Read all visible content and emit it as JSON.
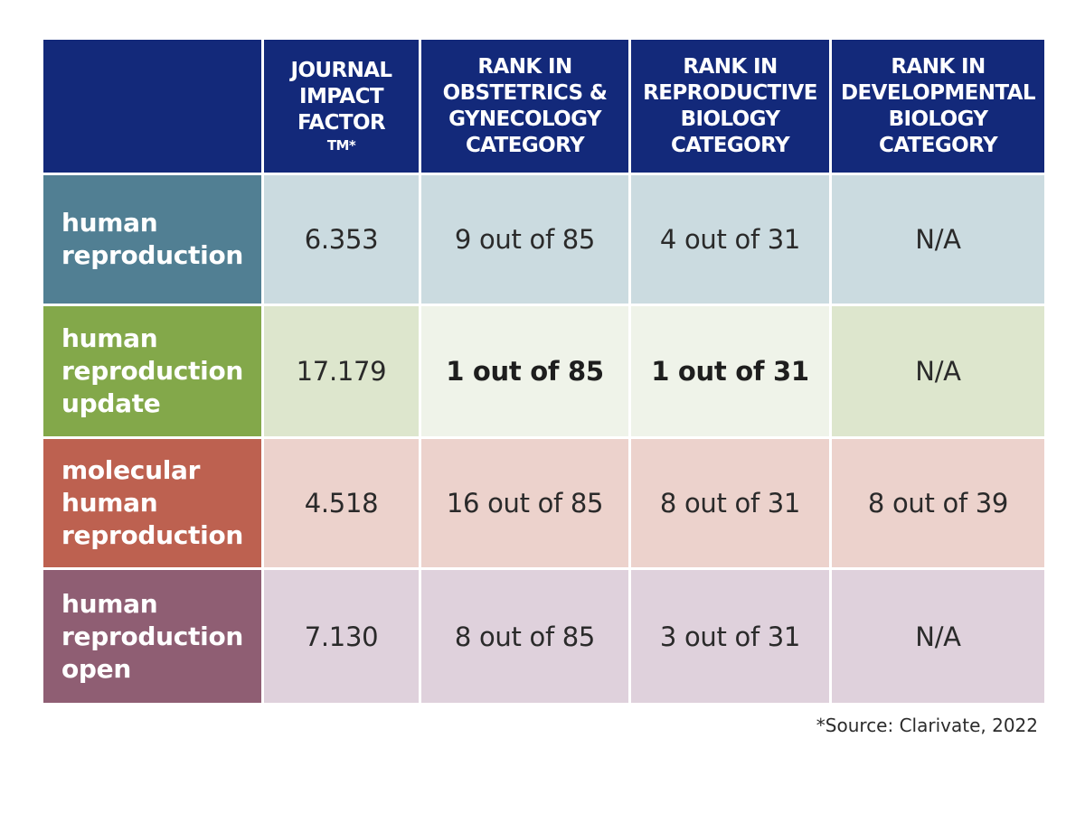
{
  "chart_data": {
    "type": "table",
    "columns": [
      "",
      "JOURNAL\nIMPACT\nFACTOR",
      "RANK IN\nOBSTETRICS &\nGYNECOLOGY\nCATEGORY",
      "RANK IN\nREPRODUCTIVE\nBIOLOGY\nCATEGORY",
      "RANK IN\nDEVELOPMENTAL\nBIOLOGY\nCATEGORY"
    ],
    "impact_factor_suffix": "TM*",
    "rows": [
      {
        "label": "human\nreproduction",
        "color": "#517f93",
        "cell_bg": "#cbdbe0",
        "values": [
          "6.353",
          "9 out of 85",
          "4 out of 31",
          "N/A"
        ],
        "bold": [
          false,
          false,
          false,
          false
        ]
      },
      {
        "label": "human\nreproduction\nupdate",
        "color": "#83a84a",
        "cell_bg": "#dde6cd",
        "cell_bg_highlight": "#eff3e9",
        "values": [
          "17.179",
          "1 out of 85",
          "1 out of 31",
          "N/A"
        ],
        "bold": [
          false,
          true,
          true,
          false
        ]
      },
      {
        "label": "molecular\nhuman\nreproduction",
        "color": "#bd6150",
        "cell_bg": "#ecd2cc",
        "values": [
          "4.518",
          "16 out of 85",
          "8 out of 31",
          "8 out of 39"
        ],
        "bold": [
          false,
          false,
          false,
          false
        ]
      },
      {
        "label": "human\nreproduction\nopen",
        "color": "#8f5e73",
        "cell_bg": "#dfd1dc",
        "values": [
          "7.130",
          "8 out of 85",
          "3 out of 31",
          "N/A"
        ],
        "bold": [
          false,
          false,
          false,
          false
        ]
      }
    ],
    "header_color": "#13297a"
  },
  "footnote": "*Source: Clarivate, 2022"
}
